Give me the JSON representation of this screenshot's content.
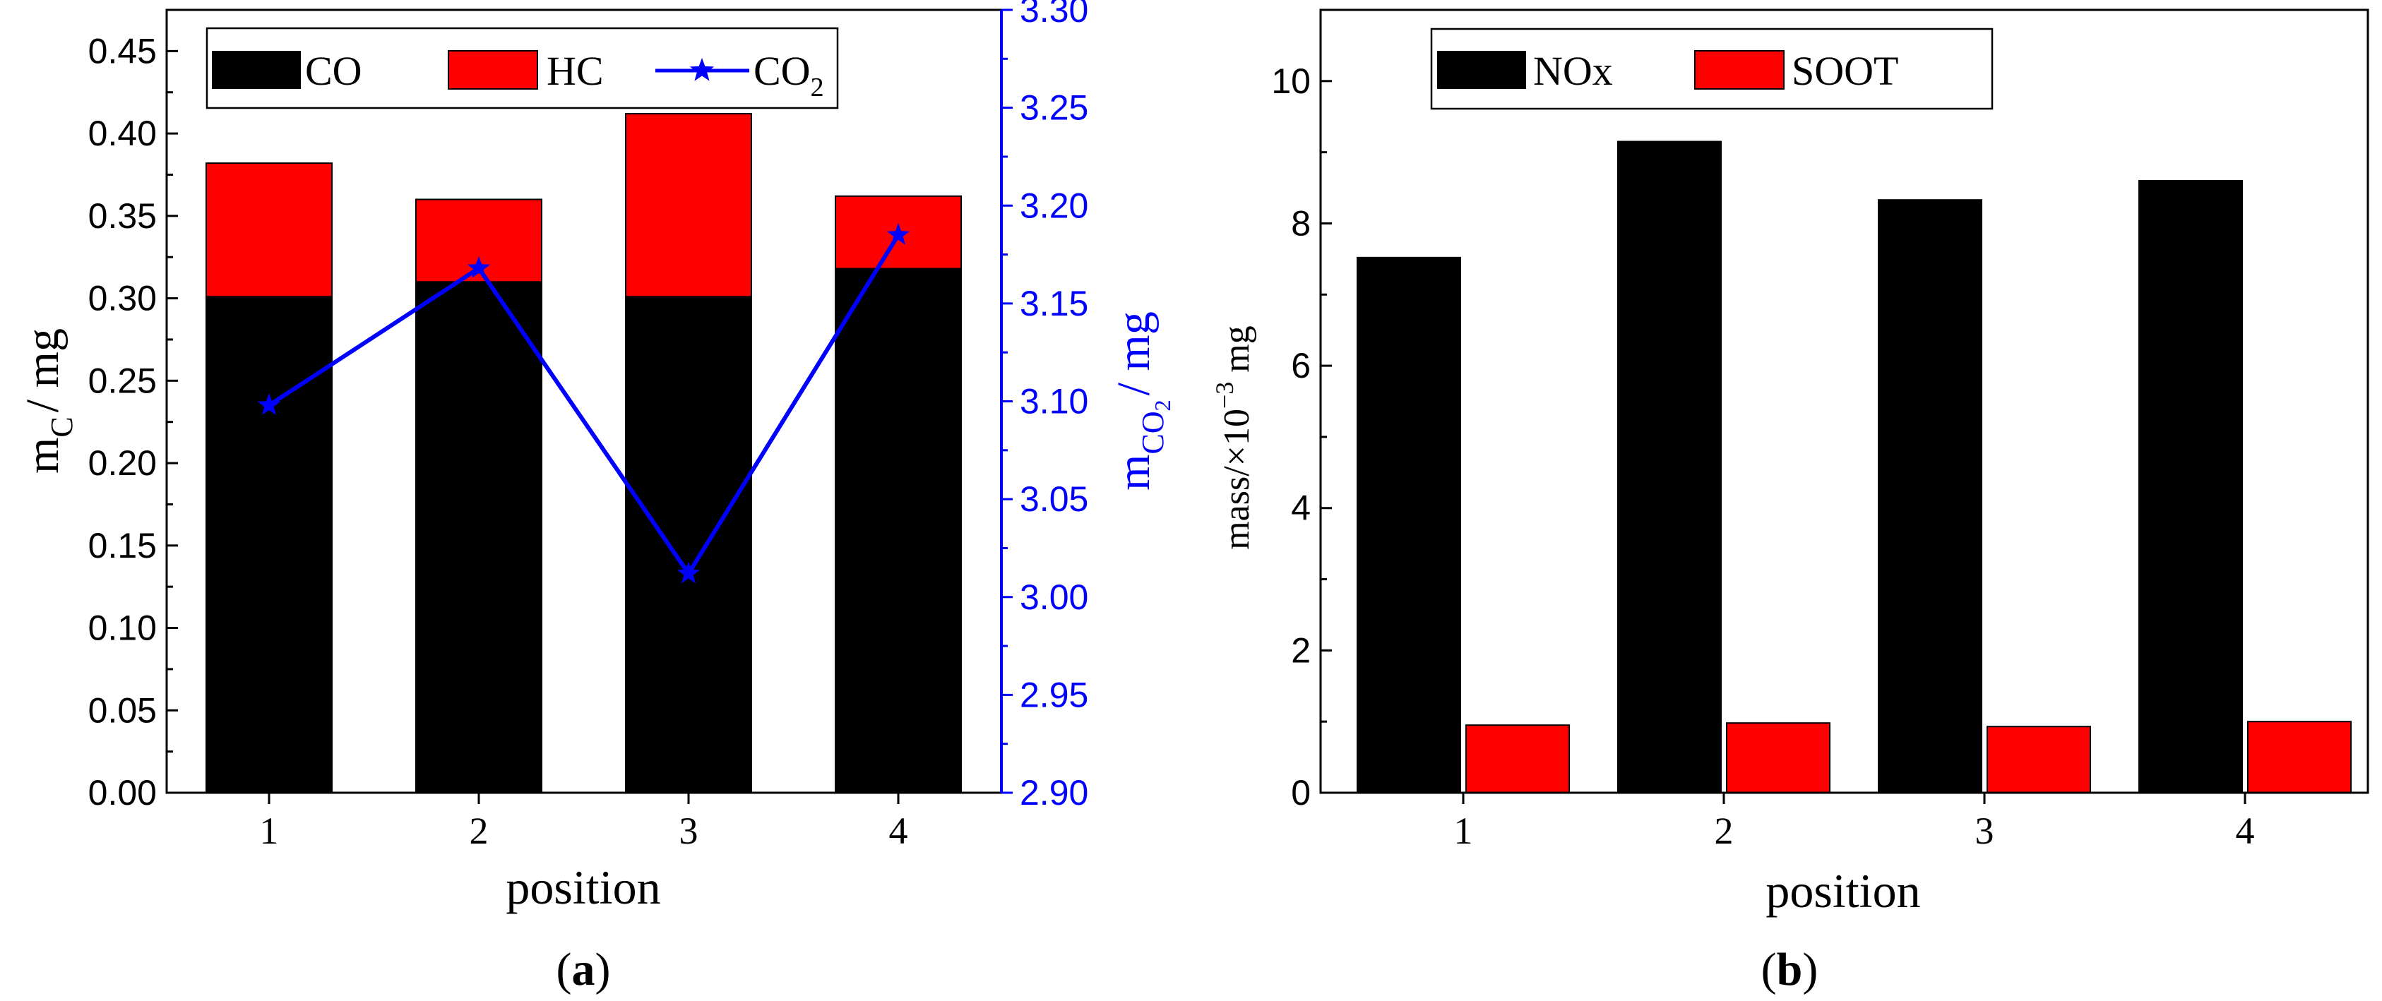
{
  "colors": {
    "co": "#000000",
    "hc": "#ff0000",
    "co2": "#0000ff",
    "nox": "#000000",
    "soot": "#ff0000",
    "axis": "#000000"
  },
  "chart_data": [
    {
      "panel": "a",
      "panel_label": {
        "open": "(",
        "letter": "a",
        "close": ")"
      },
      "type": "bar",
      "stacked": true,
      "categories": [
        "1",
        "2",
        "3",
        "4"
      ],
      "xlabel": "position",
      "ylabel": {
        "main": "m",
        "sub": "C",
        "rest": "/ mg"
      },
      "ylim": [
        0,
        0.475
      ],
      "yticks": [
        "0.00",
        "0.05",
        "0.10",
        "0.15",
        "0.20",
        "0.25",
        "0.30",
        "0.35",
        "0.40",
        "0.45"
      ],
      "series": [
        {
          "name": "CO",
          "values": [
            0.301,
            0.31,
            0.301,
            0.318
          ]
        },
        {
          "name": "HC",
          "values": [
            0.081,
            0.05,
            0.111,
            0.044
          ]
        }
      ],
      "secondary": {
        "type": "line",
        "legend": {
          "main": "CO",
          "sub": "2"
        },
        "ylabel": {
          "main": "m",
          "sub": "CO",
          "sub2": "2",
          "rest": "/ mg"
        },
        "ylim": [
          2.9,
          3.3
        ],
        "yticks": [
          "2.90",
          "2.95",
          "3.00",
          "3.05",
          "3.10",
          "3.15",
          "3.20",
          "3.25",
          "3.30"
        ],
        "values": [
          3.098,
          3.168,
          3.012,
          3.185
        ]
      }
    },
    {
      "panel": "b",
      "panel_label": {
        "open": "(",
        "letter": "b",
        "close": ")"
      },
      "type": "bar",
      "stacked": false,
      "categories": [
        "1",
        "2",
        "3",
        "4"
      ],
      "xlabel": "position",
      "ylabel": {
        "main": "mass/×10",
        "sup": "−3",
        "rest": " mg"
      },
      "ylim": [
        0,
        11
      ],
      "yticks": [
        "0",
        "2",
        "4",
        "6",
        "8",
        "10"
      ],
      "series": [
        {
          "name": "NOx",
          "values": [
            7.52,
            9.15,
            8.33,
            8.6
          ]
        },
        {
          "name": "SOOT",
          "values": [
            0.95,
            0.98,
            0.93,
            1.0
          ]
        }
      ]
    }
  ]
}
